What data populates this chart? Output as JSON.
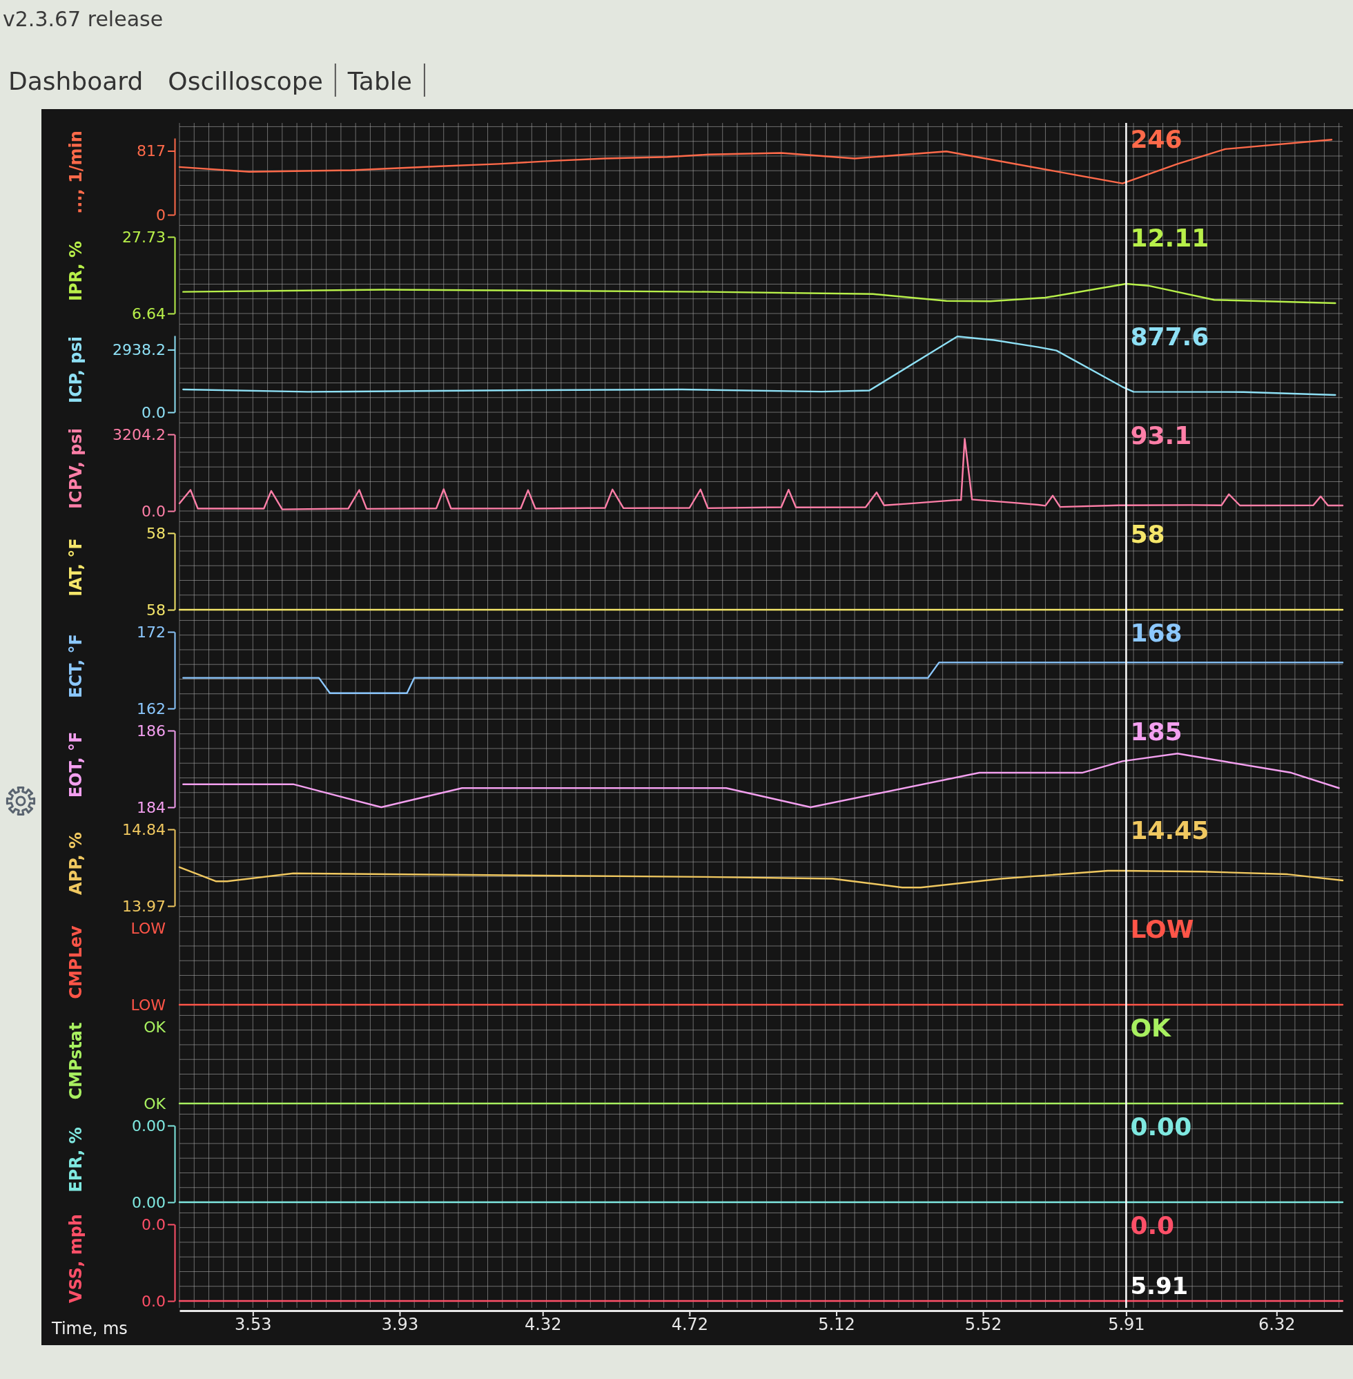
{
  "chart_data": [
    {
      "type": "line",
      "ylabel": "..., 1/min",
      "x": [
        3.33,
        3.52,
        3.8,
        4.04,
        4.2,
        4.35,
        4.49,
        4.66,
        4.77,
        4.97,
        5.17,
        5.42,
        5.9,
        6.05,
        6.18,
        6.47
      ],
      "series": [
        {
          "color": "#ff6a4a",
          "values": [
            610,
            550,
            570,
            620,
            650,
            690,
            720,
            740,
            770,
            790,
            720,
            810,
            400,
            650,
            840,
            960
          ]
        }
      ],
      "xlim": [
        3.33,
        6.5
      ],
      "xticks": [
        3.53,
        3.93,
        4.32,
        4.72,
        5.12,
        5.52,
        5.91,
        6.32
      ],
      "ylim": [
        0,
        980
      ],
      "yticks": [
        817,
        0
      ],
      "grid": true,
      "tick_labels": "y",
      "annotations": [
        "v2.3.67 release",
        "Dashboard",
        "Oscilloscope",
        "Table",
        "246"
      ]
    },
    {
      "type": "line",
      "ylabel": "IPR, %",
      "x": [
        3.34,
        3.89,
        4.35,
        4.77,
        5.22,
        5.42,
        5.54,
        5.69,
        5.91,
        5.97,
        6.15,
        6.48
      ],
      "series": [
        {
          "color": "#b8f04a",
          "values": [
            12.6,
            13.2,
            12.9,
            12.6,
            12.0,
            10.1,
            10.0,
            11.0,
            14.8,
            14.3,
            10.4,
            9.5
          ]
        }
      ],
      "xlim": [
        3.33,
        6.5
      ],
      "xticks": [
        3.53,
        3.93,
        4.32,
        4.72,
        5.12,
        5.52,
        5.91,
        6.32
      ],
      "ylim": [
        6.64,
        27.73
      ],
      "yticks": [
        27.73,
        6.64
      ],
      "grid": true,
      "tick_labels": "y",
      "annotations": [
        "12.11"
      ]
    },
    {
      "type": "line",
      "ylabel": "ICP, psi",
      "x": [
        3.34,
        3.68,
        4.31,
        4.7,
        5.08,
        5.21,
        5.45,
        5.55,
        5.67,
        5.72,
        5.9,
        5.93,
        6.23,
        6.48
      ],
      "series": [
        {
          "color": "#8ee0f5",
          "values": [
            1070,
            960,
            1040,
            1070,
            970,
            1020,
            3560,
            3390,
            3060,
            2900,
            1190,
            960,
            950,
            810
          ]
        }
      ],
      "xlim": [
        3.33,
        6.5
      ],
      "xticks": [
        3.53,
        3.93,
        4.32,
        4.72,
        5.12,
        5.52,
        5.91,
        6.32
      ],
      "ylim": [
        0,
        3600
      ],
      "yticks": [
        2938.2,
        {
          "value": 0,
          "label": "0.0"
        }
      ],
      "grid": true,
      "tick_labels": "y",
      "annotations": [
        "877.6"
      ]
    },
    {
      "type": "line",
      "ylabel": "ICPV, psi",
      "x": [
        3.33,
        3.36,
        3.38,
        3.56,
        3.58,
        3.61,
        3.79,
        3.82,
        3.84,
        4.03,
        4.05,
        4.07,
        4.26,
        4.28,
        4.3,
        4.49,
        4.51,
        4.54,
        4.72,
        4.75,
        4.77,
        4.97,
        4.99,
        5.01,
        5.2,
        5.23,
        5.25,
        5.31,
        5.44,
        5.46,
        5.47,
        5.49,
        5.6,
        5.67,
        5.69,
        5.71,
        5.73,
        5.89,
        6.09,
        6.17,
        6.19,
        6.22,
        6.42,
        6.44,
        6.46,
        6.5
      ],
      "series": [
        {
          "color": "#ff7fa8",
          "values": [
            320,
            880,
            100,
            100,
            840,
            70,
            100,
            880,
            90,
            110,
            910,
            100,
            110,
            870,
            100,
            130,
            900,
            120,
            130,
            900,
            120,
            160,
            890,
            150,
            160,
            780,
            240,
            300,
            450,
            460,
            3020,
            480,
            350,
            260,
            220,
            640,
            170,
            240,
            250,
            240,
            700,
            230,
            240,
            610,
            230,
            230
          ]
        }
      ],
      "xlim": [
        3.33,
        6.5
      ],
      "xticks": [
        3.53,
        3.93,
        4.32,
        4.72,
        5.12,
        5.52,
        5.91,
        6.32
      ],
      "ylim": [
        0,
        3204.2
      ],
      "yticks": [
        3204.2,
        {
          "value": 0,
          "label": "0.0"
        }
      ],
      "grid": true,
      "tick_labels": "y",
      "annotations": [
        "93.1"
      ]
    },
    {
      "type": "line",
      "ylabel": "IAT, °F",
      "x": [
        3.33,
        6.5
      ],
      "series": [
        {
          "color": "#f5e66a",
          "values": [
            58,
            58
          ]
        }
      ],
      "xlim": [
        3.33,
        6.5
      ],
      "xticks": [
        3.53,
        3.93,
        4.32,
        4.72,
        5.12,
        5.52,
        5.91,
        6.32
      ],
      "ylim": [
        58,
        58.4
      ],
      "yticks": [
        {
          "value": 58.4,
          "label": "58"
        },
        58
      ],
      "grid": true,
      "tick_labels": "y",
      "annotations": [
        "58"
      ]
    },
    {
      "type": "line",
      "ylabel": "ECT, °F",
      "x": [
        3.34,
        3.71,
        3.74,
        3.95,
        3.97,
        5.37,
        5.4,
        6.5
      ],
      "series": [
        {
          "color": "#8cc8ff",
          "values": [
            166,
            166,
            164,
            164,
            166,
            166,
            168,
            168
          ]
        }
      ],
      "xlim": [
        3.33,
        6.5
      ],
      "xticks": [
        3.53,
        3.93,
        4.32,
        4.72,
        5.12,
        5.52,
        5.91,
        6.32
      ],
      "ylim": [
        162,
        172
      ],
      "yticks": [
        172,
        162
      ],
      "grid": true,
      "tick_labels": "y",
      "annotations": [
        "168"
      ]
    },
    {
      "type": "line",
      "ylabel": "EOT, °F",
      "x": [
        3.34,
        3.64,
        3.88,
        4.1,
        4.82,
        5.05,
        5.51,
        5.79,
        5.9,
        6.05,
        6.36,
        6.49
      ],
      "series": [
        {
          "color": "#f4a0f0",
          "values": [
            184.6,
            184.6,
            184.0,
            184.5,
            184.5,
            184.0,
            184.9,
            184.9,
            185.2,
            185.4,
            184.9,
            184.5
          ]
        }
      ],
      "xlim": [
        3.33,
        6.5
      ],
      "xticks": [
        3.53,
        3.93,
        4.32,
        4.72,
        5.12,
        5.52,
        5.91,
        6.32
      ],
      "ylim": [
        184,
        186
      ],
      "yticks": [
        186,
        184
      ],
      "grid": true,
      "tick_labels": "y",
      "annotations": [
        "185"
      ]
    },
    {
      "type": "line",
      "ylabel": "APP, %",
      "x": [
        3.33,
        3.43,
        3.46,
        3.64,
        4.76,
        5.11,
        5.3,
        5.35,
        5.57,
        5.86,
        5.9,
        6.12,
        6.35,
        6.5
      ],
      "series": [
        {
          "color": "#f0c860",
          "values": [
            14.41,
            14.25,
            14.25,
            14.34,
            14.3,
            14.28,
            14.18,
            14.18,
            14.28,
            14.37,
            14.37,
            14.36,
            14.33,
            14.26
          ]
        }
      ],
      "xlim": [
        3.33,
        6.5
      ],
      "xticks": [
        3.53,
        3.93,
        4.32,
        4.72,
        5.12,
        5.52,
        5.91,
        6.32
      ],
      "ylim": [
        13.97,
        14.84
      ],
      "yticks": [
        14.84,
        13.97
      ],
      "grid": true,
      "tick_labels": "y",
      "annotations": [
        "14.45"
      ]
    },
    {
      "type": "other",
      "ylabel": "CMPLev",
      "color": "#ff5548",
      "annotations": [
        "LOW",
        "LOW",
        "LOW"
      ]
    },
    {
      "type": "other",
      "ylabel": "CMPstat",
      "color": "#a8f060",
      "annotations": [
        "OK",
        "OK",
        "OK"
      ]
    },
    {
      "type": "line",
      "ylabel": "EPR, %",
      "x": [
        3.33,
        6.5
      ],
      "series": [
        {
          "color": "#7fe8e0",
          "values": [
            0,
            0
          ]
        }
      ],
      "xlim": [
        3.33,
        6.5
      ],
      "xticks": [
        3.53,
        3.93,
        4.32,
        4.72,
        5.12,
        5.52,
        5.91,
        6.32
      ],
      "ylim": [
        0,
        0.004
      ],
      "yticks": [
        {
          "value": 0.004,
          "label": "0.00"
        },
        {
          "value": 0,
          "label": "0.00"
        }
      ],
      "grid": true,
      "tick_labels": "y",
      "annotations": [
        "0.00"
      ]
    },
    {
      "type": "line",
      "ylabel": "VSS, mph",
      "xlabel": "Time, ms",
      "x": [
        3.33,
        6.5
      ],
      "series": [
        {
          "color": "#ff5068",
          "values": [
            0,
            0
          ]
        }
      ],
      "xlim": [
        3.33,
        6.5
      ],
      "xticks": [
        3.53,
        3.93,
        4.32,
        4.72,
        5.12,
        5.52,
        5.91,
        6.32
      ],
      "ylim": [
        0,
        0.04
      ],
      "yticks": [
        {
          "value": 0.04,
          "label": "0.0"
        },
        {
          "value": 0,
          "label": "0.0"
        }
      ],
      "grid": true,
      "ref_lines": [
        {
          "axis": "x",
          "value": 5.91,
          "label": "5.91"
        }
      ],
      "annotations": [
        "0.0"
      ]
    }
  ]
}
